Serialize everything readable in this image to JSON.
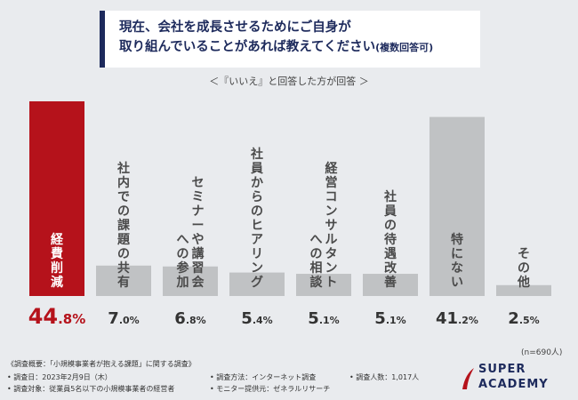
{
  "header": {
    "title_line1": "現在、会社を成長させるためにご自身が",
    "title_line2": "取り組んでいることがあれば教えてください",
    "title_suffix": "(複数回答可)",
    "subtitle": "＜『いいえ』と回答した方が回答 ＞"
  },
  "chart_data": {
    "type": "bar",
    "categories": [
      "経費削減",
      "社内での課題の共有",
      "セミナーや講習会への参加",
      "社員からのヒアリング",
      "経営コンサルタントへの相談",
      "社員の待遇改善",
      "特にない",
      "その他"
    ],
    "values": [
      44.8,
      7.0,
      6.8,
      5.4,
      5.1,
      5.1,
      41.2,
      2.5
    ],
    "value_labels": [
      "44.8%",
      "7.0%",
      "6.8%",
      "5.4%",
      "5.1%",
      "5.1%",
      "41.2%",
      "2.5%"
    ],
    "unit": "%",
    "ylim": [
      0,
      45
    ],
    "grid": false,
    "colors": {
      "highlight": "#b5121b",
      "default": "#c0c2c4",
      "highlight_label": "#ffffff",
      "default_label": "#4a4a4a"
    },
    "highlight_index": 0
  },
  "n_note": "(n=690人)",
  "footer": {
    "survey_overview": "《調査概要：「小規模事業者が抱える課題」に関する調査》",
    "survey_date": "• 調査日：2023年2月9日（木）",
    "survey_target": "• 調査対象：従業員5名以下の小規模事業者の経営者",
    "survey_method": "• 調査方法：インターネット調査",
    "survey_provider": "• モニター提供元：ゼネラルリサーチ",
    "survey_count": "• 調査人数：1,017人"
  },
  "logo": {
    "line1": "SUPER",
    "line2": "ACADEMY",
    "color": "#1d2a5c",
    "accent": "#b5121b"
  }
}
